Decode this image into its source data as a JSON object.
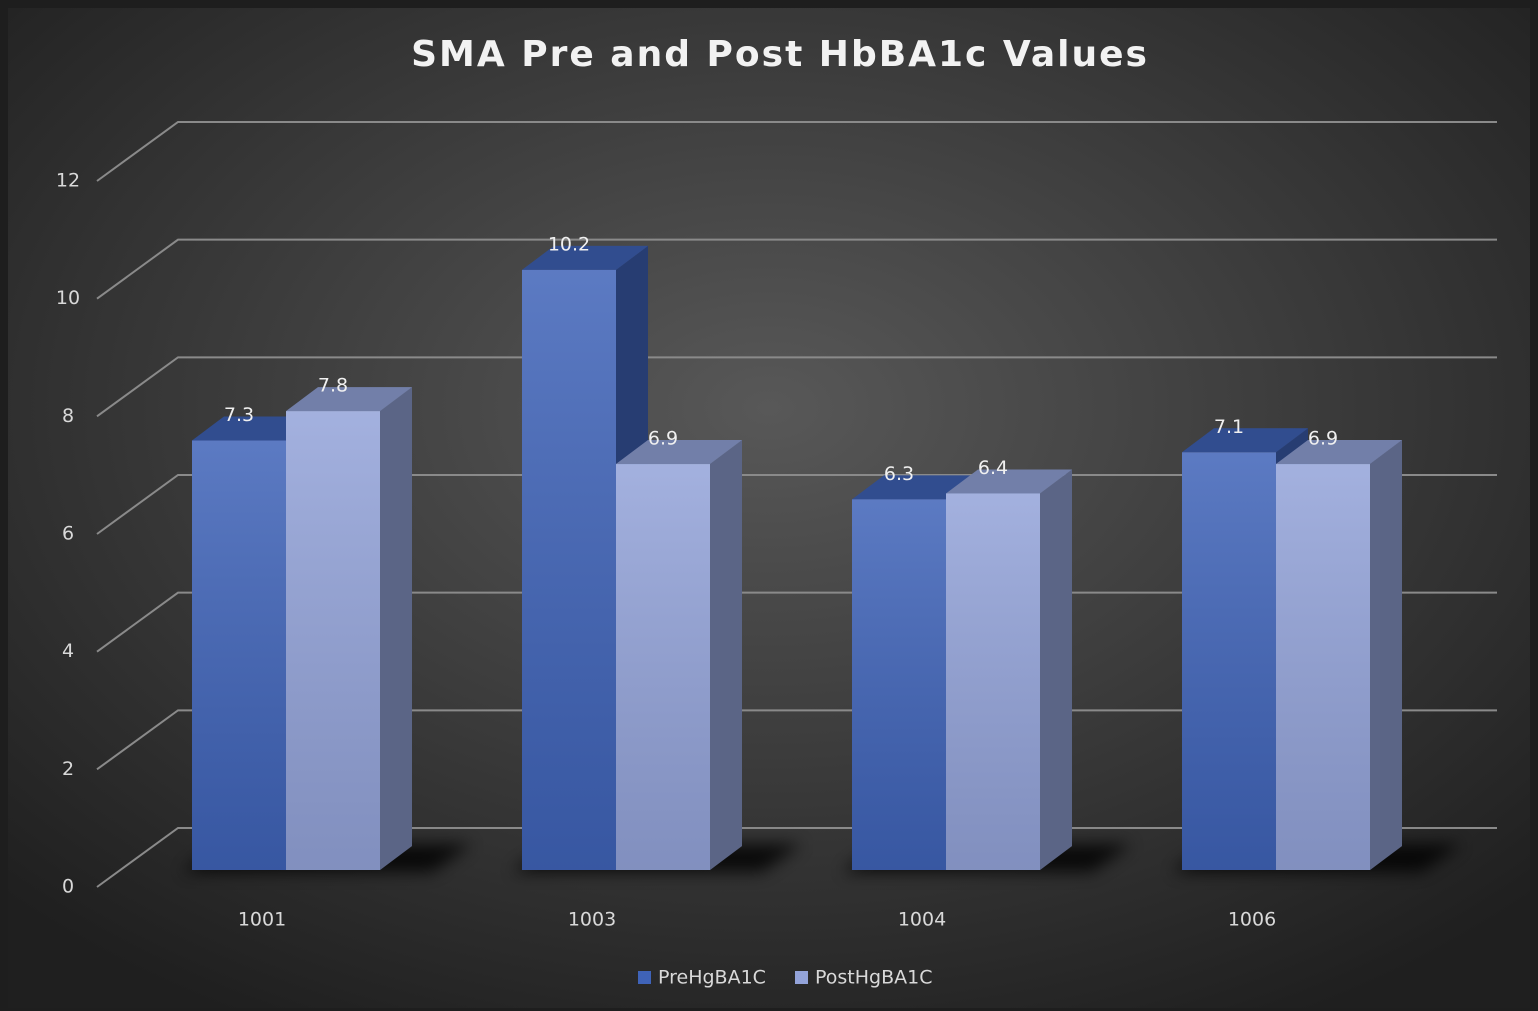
{
  "chart_data": {
    "type": "bar3d",
    "title": "SMA Pre and Post HbBA1c Values",
    "categories": [
      "1001",
      "1003",
      "1004",
      "1006"
    ],
    "series": [
      {
        "name": "PreHgBA1C",
        "color": "#3f63b8",
        "values": [
          7.3,
          10.2,
          6.3,
          7.1
        ]
      },
      {
        "name": "PostHgBA1C",
        "color": "#93a3d9",
        "values": [
          7.8,
          6.9,
          6.4,
          6.9
        ]
      }
    ],
    "ylim": [
      0,
      12
    ],
    "yticks": [
      0,
      2,
      4,
      6,
      8,
      10,
      12
    ],
    "grid": true,
    "legend": "bottom"
  }
}
